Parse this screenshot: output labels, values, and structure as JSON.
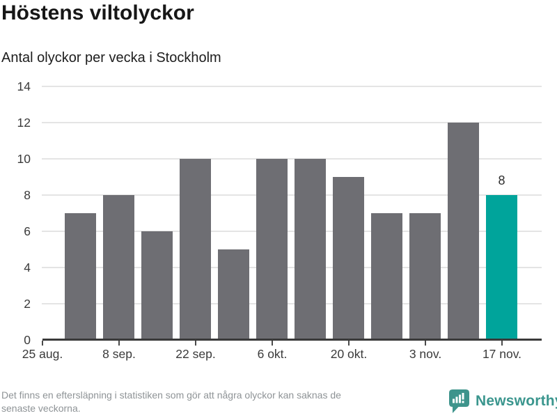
{
  "header": {
    "title": "Höstens viltolyckor",
    "subtitle": "Antal olyckor per vecka i Stockholm"
  },
  "chart_data": {
    "type": "bar",
    "title": "Höstens viltolyckor",
    "subtitle": "Antal olyckor per vecka i Stockholm",
    "values": [
      7,
      8,
      6,
      10,
      5,
      10,
      10,
      9,
      7,
      7,
      12,
      8
    ],
    "xticklabels": [
      "25 aug.",
      "8 sep.",
      "22 sep.",
      "6 okt.",
      "20 okt.",
      "3 nov.",
      "17 nov."
    ],
    "yticks": [
      0,
      2,
      4,
      6,
      8,
      10,
      12,
      14
    ],
    "ylim": [
      0,
      14
    ],
    "xlabel": "",
    "ylabel": "",
    "grid": true,
    "legend": false,
    "highlight_index": 11,
    "value_labels": [
      {
        "index": 11,
        "text": "8"
      }
    ],
    "colors": {
      "bar": "#6E6E73",
      "highlight": "#00A49B",
      "gridline": "#E4E4E4",
      "axis": "#3A3A3A",
      "tick": "#4A4A4A"
    }
  },
  "footer": {
    "note": "Det finns en eftersläpning i statistiken som gör att några olyckor kan saknas de senaste veckorna.",
    "note_lines": [
      "Det finns en eftersläpning i statistiken som gör att några olyckor kan saknas de",
      "senaste veckorna."
    ],
    "brand": "Newsworthy"
  }
}
